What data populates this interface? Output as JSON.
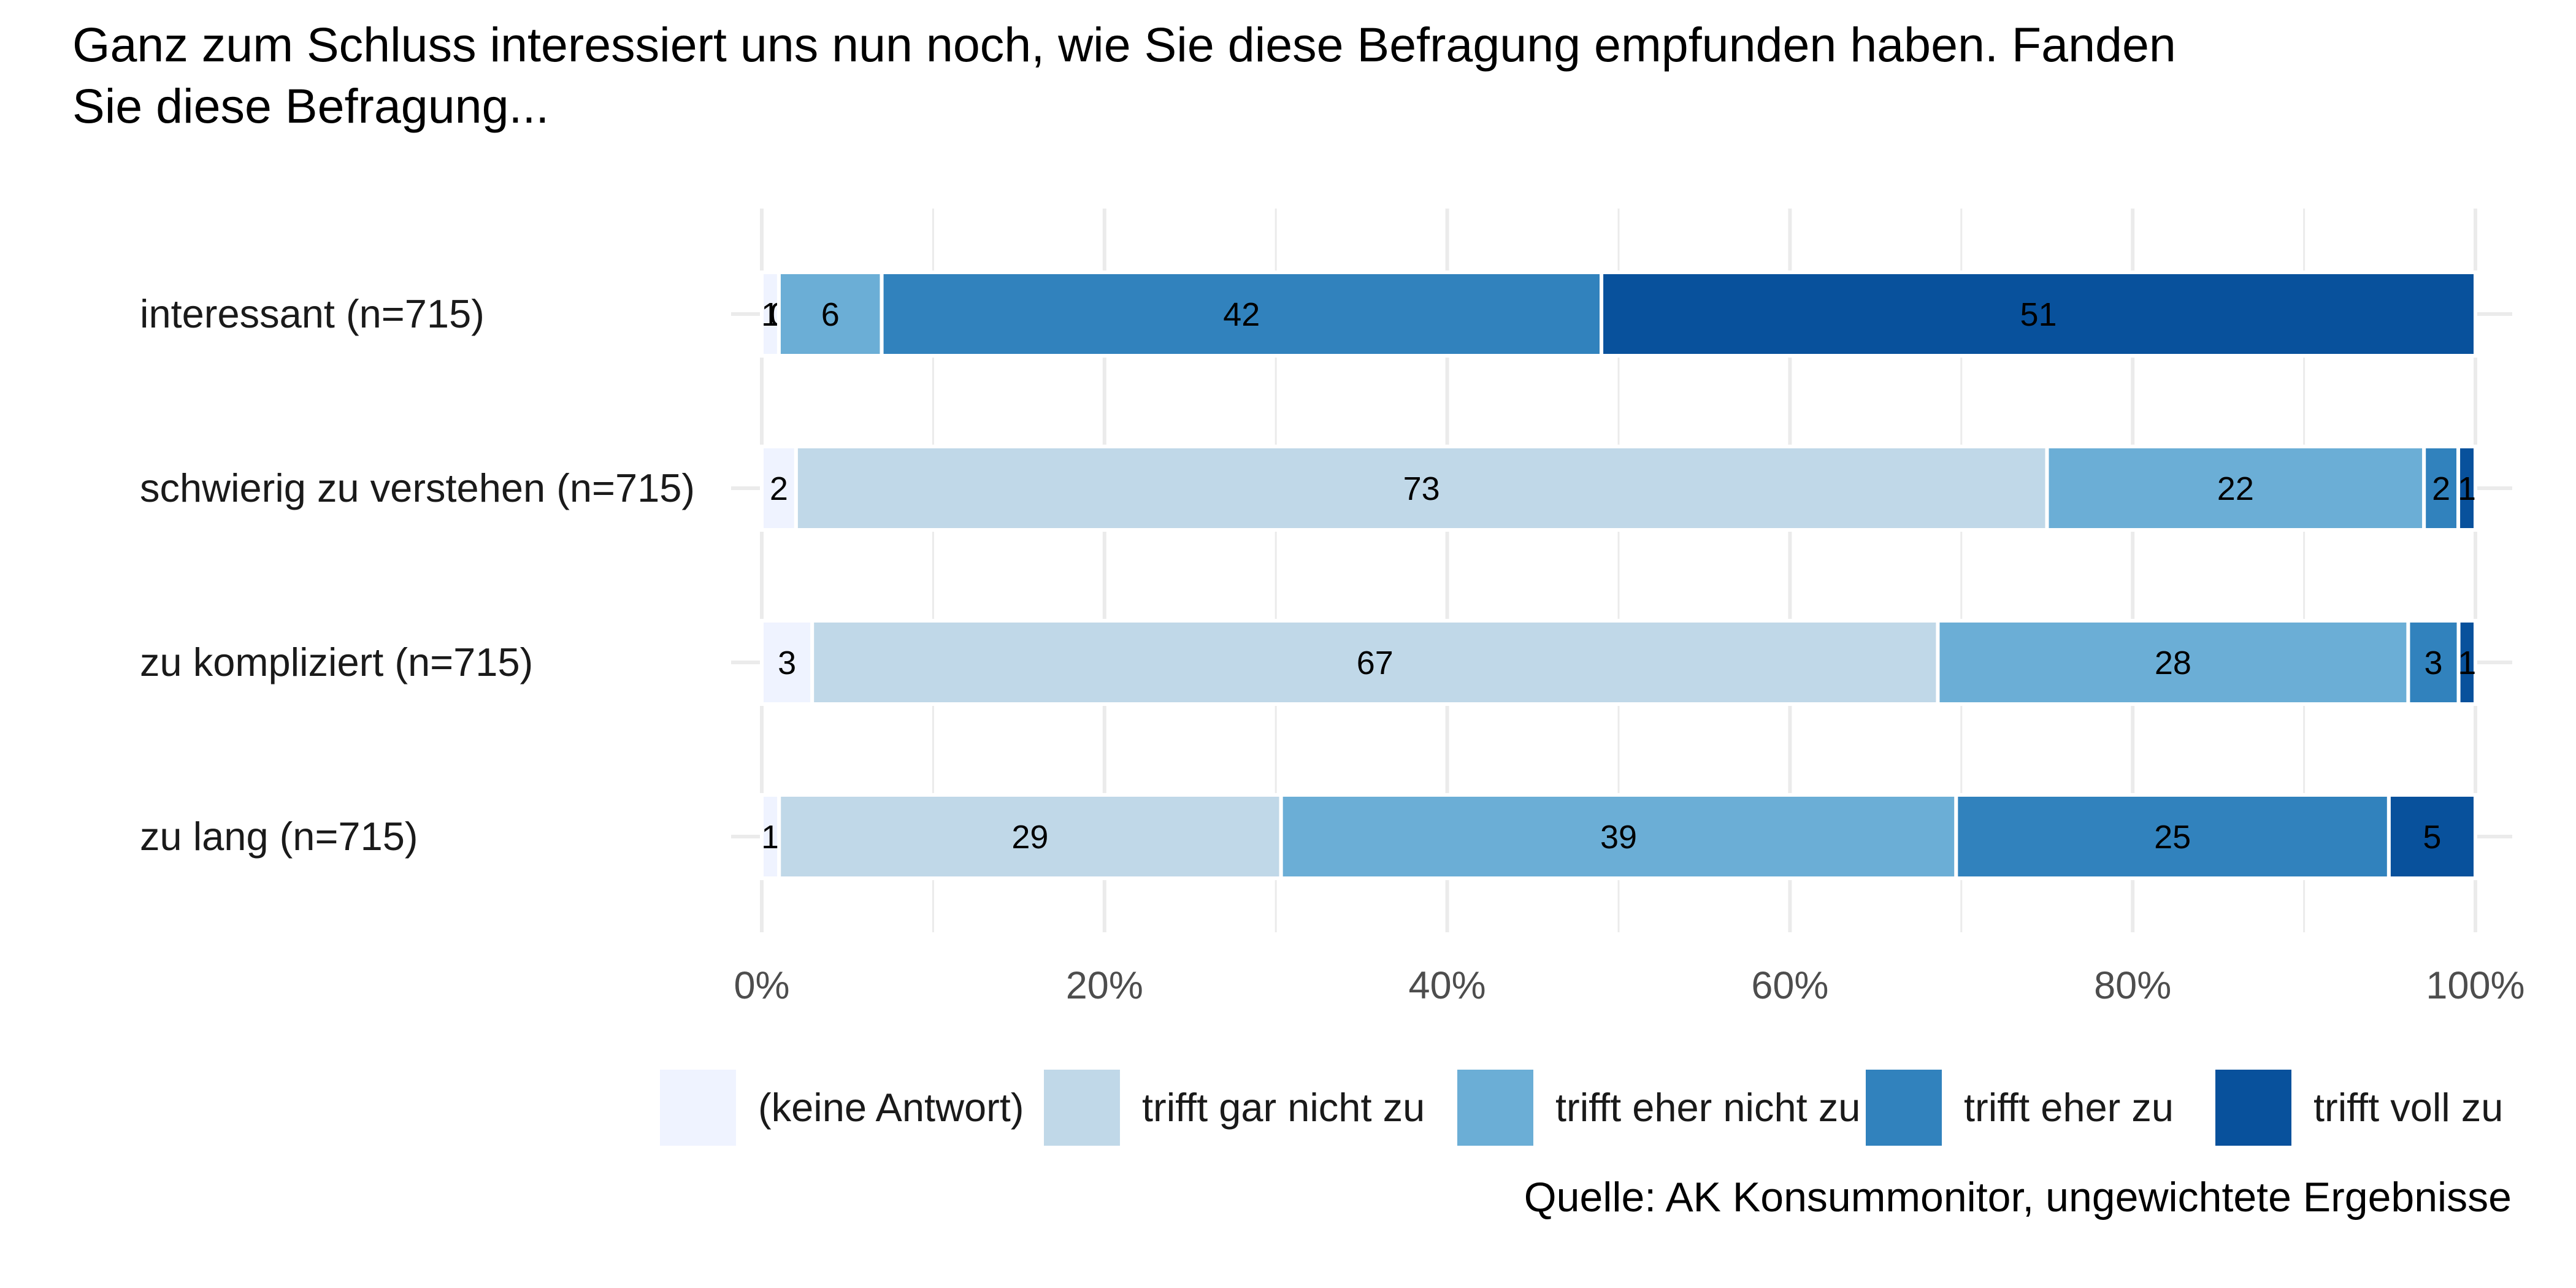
{
  "chart_data": {
    "type": "bar",
    "orientation": "horizontal",
    "stacked": true,
    "percent": true,
    "title_line1": "Ganz zum Schluss interessiert uns nun noch, wie Sie diese Befragung empfunden haben. Fanden",
    "title_line2": "Sie diese Befragung...",
    "categories": [
      "interessant (n=715)",
      "schwierig zu verstehen (n=715)",
      "zu kompliziert (n=715)",
      "zu lang (n=715)"
    ],
    "series": [
      {
        "name": "(keine Antwort)",
        "color": "#eff3ff",
        "values": [
          1,
          2,
          3,
          1
        ]
      },
      {
        "name": "trifft gar nicht zu",
        "color": "#c0d8e8",
        "values": [
          0,
          73,
          67,
          29
        ]
      },
      {
        "name": "trifft eher nicht zu",
        "color": "#6baed6",
        "values": [
          6,
          22,
          28,
          39
        ]
      },
      {
        "name": "trifft eher zu",
        "color": "#3182bd",
        "values": [
          42,
          2,
          3,
          25
        ]
      },
      {
        "name": "trifft voll zu",
        "color": "#08519c",
        "values": [
          51,
          1,
          1,
          5
        ]
      }
    ],
    "segment_labels": [
      [
        "1",
        "0",
        "6",
        "42",
        "51"
      ],
      [
        "2",
        "73",
        "22",
        "2",
        "1"
      ],
      [
        "3",
        "67",
        "28",
        "3",
        "1"
      ],
      [
        "1",
        "29",
        "39",
        "25",
        "5"
      ]
    ],
    "xlim": [
      0,
      100
    ],
    "xticks": [
      "0%",
      "20%",
      "40%",
      "60%",
      "80%",
      "100%"
    ],
    "xlabel": "",
    "ylabel": "",
    "grid": true,
    "legend_position": "bottom",
    "caption": "Quelle: AK Konsummonitor, ungewichtete Ergebnisse"
  }
}
